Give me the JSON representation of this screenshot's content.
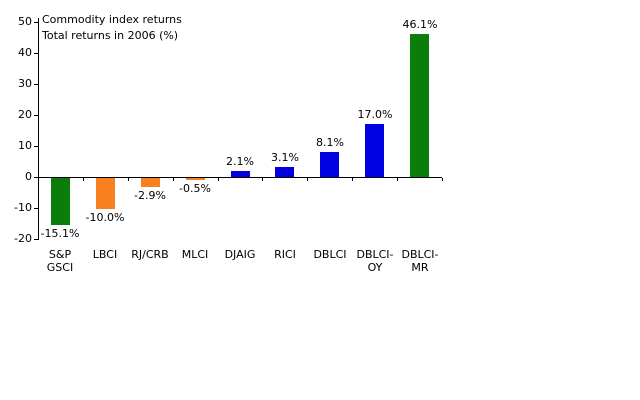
{
  "chart_data": {
    "type": "bar",
    "title": "Commodity index returns",
    "subtitle": "Total returns in 2006 (%)",
    "categories": [
      "S&P\nGSCI",
      "LBCI",
      "RJ/CRB",
      "MLCI",
      "DJAIG",
      "RICI",
      "DBLCI",
      "DBLCI-\nOY",
      "DBLCI-\nMR"
    ],
    "values": [
      -15.1,
      -10.0,
      -2.9,
      -0.5,
      2.1,
      3.1,
      8.1,
      17.0,
      46.1
    ],
    "value_labels": [
      "-15.1%",
      "-10.0%",
      "-2.9%",
      "-0.5%",
      "2.1%",
      "3.1%",
      "8.1%",
      "17.0%",
      "46.1%"
    ],
    "bar_colors": [
      "#0a7d0a",
      "#f8801f",
      "#f8801f",
      "#f8801f",
      "#0000e0",
      "#0000e0",
      "#0000e0",
      "#0000e0",
      "#0a7d0a"
    ],
    "colors": {
      "green": "#0a7d0a",
      "orange": "#f8801f",
      "blue": "#0000e0",
      "axis": "#000000",
      "background": "#ffffff"
    },
    "xlabel": "",
    "ylabel": "",
    "ylim": [
      -20,
      50
    ],
    "ytick_step": 10,
    "ytick_labels": [
      "50",
      "40",
      "30",
      "20",
      "10",
      "0",
      "-10",
      "-20"
    ],
    "grid": false,
    "legend": false,
    "value_label_position": "outside-end"
  }
}
